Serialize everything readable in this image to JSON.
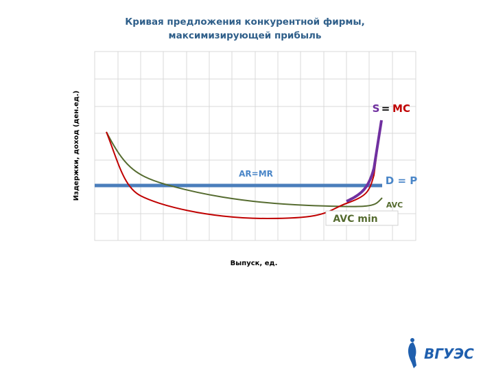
{
  "title": {
    "line1": "Кривая предложения  конкурентной фирмы,",
    "line2": "максимизирующей  прибыль"
  },
  "axes": {
    "y_label": "Издержки, доход (ден.ед.)",
    "x_label": "Выпуск, ед."
  },
  "labels": {
    "ar_mr": "AR=MR",
    "d_p": "D = P",
    "s": "S",
    "equals": "=",
    "mc": "MC",
    "avc": "AVC",
    "avc_min": "AVC min"
  },
  "logo": "ВГУЭС"
}
